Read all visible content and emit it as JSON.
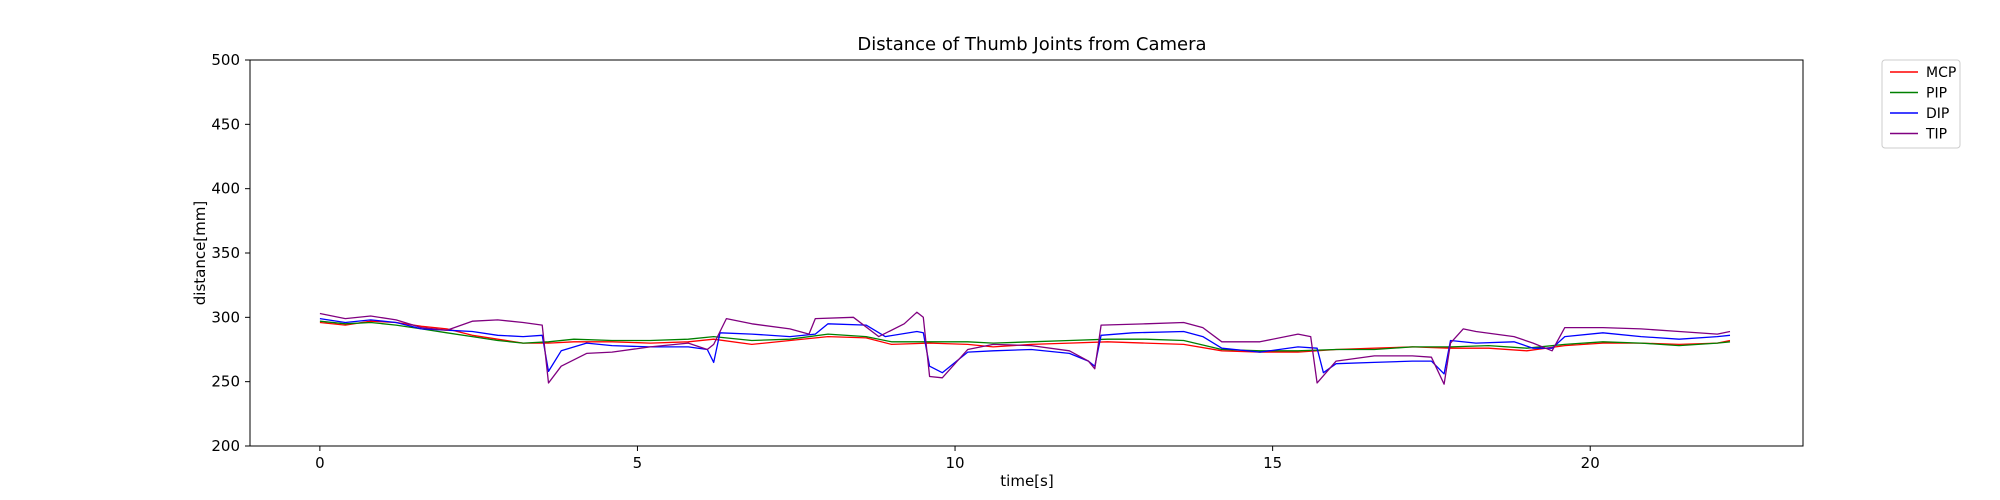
{
  "chart_data": {
    "type": "line",
    "title": "Distance of Thumb Joints from Camera",
    "xlabel": "time[s]",
    "ylabel": "distance[mm]",
    "xlim": [
      -1.1,
      23.35
    ],
    "ylim": [
      200,
      500
    ],
    "xticks": [
      0,
      5,
      10,
      15,
      20
    ],
    "yticks": [
      200,
      250,
      300,
      350,
      400,
      450,
      500
    ],
    "grid": false,
    "legend": "outside-top-right",
    "series": [
      {
        "name": "MCP",
        "color": "#ff0000",
        "points": [
          [
            0,
            296
          ],
          [
            0.4,
            294
          ],
          [
            0.8,
            297
          ],
          [
            1.2,
            296
          ],
          [
            1.6,
            293
          ],
          [
            2.0,
            291
          ],
          [
            2.4,
            286
          ],
          [
            2.8,
            283
          ],
          [
            3.2,
            280
          ],
          [
            3.6,
            280
          ],
          [
            4.0,
            281
          ],
          [
            4.6,
            281
          ],
          [
            5.2,
            280
          ],
          [
            5.8,
            281
          ],
          [
            6.2,
            283
          ],
          [
            6.8,
            279
          ],
          [
            7.4,
            282
          ],
          [
            8.0,
            285
          ],
          [
            8.6,
            284
          ],
          [
            9.0,
            279
          ],
          [
            9.6,
            280
          ],
          [
            10.2,
            279
          ],
          [
            10.6,
            277
          ],
          [
            11.2,
            279
          ],
          [
            11.8,
            280
          ],
          [
            12.4,
            281
          ],
          [
            13.0,
            280
          ],
          [
            13.6,
            279
          ],
          [
            14.2,
            274
          ],
          [
            14.8,
            273
          ],
          [
            15.4,
            273
          ],
          [
            16.0,
            275
          ],
          [
            16.6,
            276
          ],
          [
            17.2,
            277
          ],
          [
            17.8,
            276
          ],
          [
            18.4,
            276
          ],
          [
            19.0,
            274
          ],
          [
            19.6,
            278
          ],
          [
            20.2,
            280
          ],
          [
            20.8,
            280
          ],
          [
            21.4,
            279
          ],
          [
            22.0,
            280
          ],
          [
            22.2,
            282
          ]
        ]
      },
      {
        "name": "PIP",
        "color": "#008000",
        "points": [
          [
            0,
            297
          ],
          [
            0.4,
            295
          ],
          [
            0.8,
            296
          ],
          [
            1.2,
            294
          ],
          [
            1.6,
            291
          ],
          [
            2.0,
            288
          ],
          [
            2.4,
            285
          ],
          [
            2.8,
            282
          ],
          [
            3.2,
            280
          ],
          [
            3.6,
            281
          ],
          [
            4.0,
            283
          ],
          [
            4.6,
            282
          ],
          [
            5.2,
            282
          ],
          [
            5.8,
            283
          ],
          [
            6.2,
            285
          ],
          [
            6.8,
            282
          ],
          [
            7.4,
            283
          ],
          [
            8.0,
            287
          ],
          [
            8.6,
            285
          ],
          [
            9.0,
            281
          ],
          [
            9.6,
            281
          ],
          [
            10.2,
            281
          ],
          [
            10.6,
            280
          ],
          [
            11.2,
            281
          ],
          [
            11.8,
            282
          ],
          [
            12.4,
            283
          ],
          [
            13.0,
            283
          ],
          [
            13.6,
            282
          ],
          [
            14.2,
            275
          ],
          [
            14.8,
            274
          ],
          [
            15.4,
            274
          ],
          [
            16.0,
            275
          ],
          [
            16.6,
            275
          ],
          [
            17.2,
            277
          ],
          [
            17.8,
            277
          ],
          [
            18.4,
            278
          ],
          [
            19.0,
            276
          ],
          [
            19.6,
            279
          ],
          [
            20.2,
            281
          ],
          [
            20.8,
            280
          ],
          [
            21.4,
            278
          ],
          [
            22.0,
            280
          ],
          [
            22.2,
            281
          ]
        ]
      },
      {
        "name": "DIP",
        "color": "#0000ff",
        "points": [
          [
            0,
            299
          ],
          [
            0.4,
            296
          ],
          [
            0.8,
            298
          ],
          [
            1.2,
            296
          ],
          [
            1.6,
            291
          ],
          [
            2.0,
            290
          ],
          [
            2.4,
            289
          ],
          [
            2.8,
            286
          ],
          [
            3.2,
            285
          ],
          [
            3.5,
            286
          ],
          [
            3.6,
            258
          ],
          [
            3.8,
            274
          ],
          [
            4.2,
            280
          ],
          [
            4.6,
            278
          ],
          [
            5.2,
            277
          ],
          [
            5.8,
            277
          ],
          [
            6.1,
            275
          ],
          [
            6.2,
            265
          ],
          [
            6.3,
            288
          ],
          [
            6.8,
            287
          ],
          [
            7.4,
            285
          ],
          [
            7.8,
            287
          ],
          [
            8.0,
            295
          ],
          [
            8.6,
            294
          ],
          [
            8.9,
            285
          ],
          [
            9.4,
            289
          ],
          [
            9.5,
            288
          ],
          [
            9.6,
            262
          ],
          [
            9.8,
            257
          ],
          [
            10.2,
            273
          ],
          [
            10.6,
            274
          ],
          [
            11.2,
            275
          ],
          [
            11.8,
            272
          ],
          [
            12.1,
            266
          ],
          [
            12.2,
            262
          ],
          [
            12.3,
            286
          ],
          [
            12.8,
            288
          ],
          [
            13.6,
            289
          ],
          [
            13.9,
            285
          ],
          [
            14.2,
            276
          ],
          [
            14.8,
            273
          ],
          [
            15.4,
            277
          ],
          [
            15.7,
            276
          ],
          [
            15.8,
            257
          ],
          [
            16.0,
            264
          ],
          [
            16.6,
            265
          ],
          [
            17.2,
            266
          ],
          [
            17.5,
            266
          ],
          [
            17.7,
            256
          ],
          [
            17.8,
            282
          ],
          [
            18.2,
            280
          ],
          [
            18.8,
            281
          ],
          [
            19.1,
            276
          ],
          [
            19.4,
            276
          ],
          [
            19.6,
            285
          ],
          [
            20.2,
            288
          ],
          [
            20.8,
            285
          ],
          [
            21.4,
            283
          ],
          [
            22.0,
            285
          ],
          [
            22.2,
            286
          ]
        ]
      },
      {
        "name": "TIP",
        "color": "#800080",
        "points": [
          [
            0,
            303
          ],
          [
            0.4,
            299
          ],
          [
            0.8,
            301
          ],
          [
            1.2,
            298
          ],
          [
            1.6,
            292
          ],
          [
            2.0,
            290
          ],
          [
            2.4,
            297
          ],
          [
            2.8,
            298
          ],
          [
            3.2,
            296
          ],
          [
            3.5,
            294
          ],
          [
            3.6,
            249
          ],
          [
            3.8,
            262
          ],
          [
            4.2,
            272
          ],
          [
            4.6,
            273
          ],
          [
            5.2,
            277
          ],
          [
            5.8,
            280
          ],
          [
            6.1,
            275
          ],
          [
            6.2,
            279
          ],
          [
            6.4,
            299
          ],
          [
            6.8,
            295
          ],
          [
            7.4,
            291
          ],
          [
            7.7,
            287
          ],
          [
            7.8,
            299
          ],
          [
            8.4,
            300
          ],
          [
            8.8,
            285
          ],
          [
            9.2,
            295
          ],
          [
            9.4,
            304
          ],
          [
            9.5,
            300
          ],
          [
            9.6,
            254
          ],
          [
            9.8,
            253
          ],
          [
            10.2,
            275
          ],
          [
            10.6,
            279
          ],
          [
            11.2,
            278
          ],
          [
            11.8,
            274
          ],
          [
            12.1,
            266
          ],
          [
            12.2,
            260
          ],
          [
            12.3,
            294
          ],
          [
            13.0,
            295
          ],
          [
            13.6,
            296
          ],
          [
            13.9,
            292
          ],
          [
            14.2,
            281
          ],
          [
            14.8,
            281
          ],
          [
            15.4,
            287
          ],
          [
            15.6,
            285
          ],
          [
            15.7,
            249
          ],
          [
            16.0,
            266
          ],
          [
            16.6,
            270
          ],
          [
            17.2,
            270
          ],
          [
            17.5,
            269
          ],
          [
            17.7,
            248
          ],
          [
            17.8,
            280
          ],
          [
            18.0,
            291
          ],
          [
            18.2,
            289
          ],
          [
            18.8,
            285
          ],
          [
            19.1,
            280
          ],
          [
            19.4,
            274
          ],
          [
            19.6,
            292
          ],
          [
            20.2,
            292
          ],
          [
            20.8,
            291
          ],
          [
            21.4,
            289
          ],
          [
            22.0,
            287
          ],
          [
            22.2,
            289
          ]
        ]
      }
    ]
  }
}
